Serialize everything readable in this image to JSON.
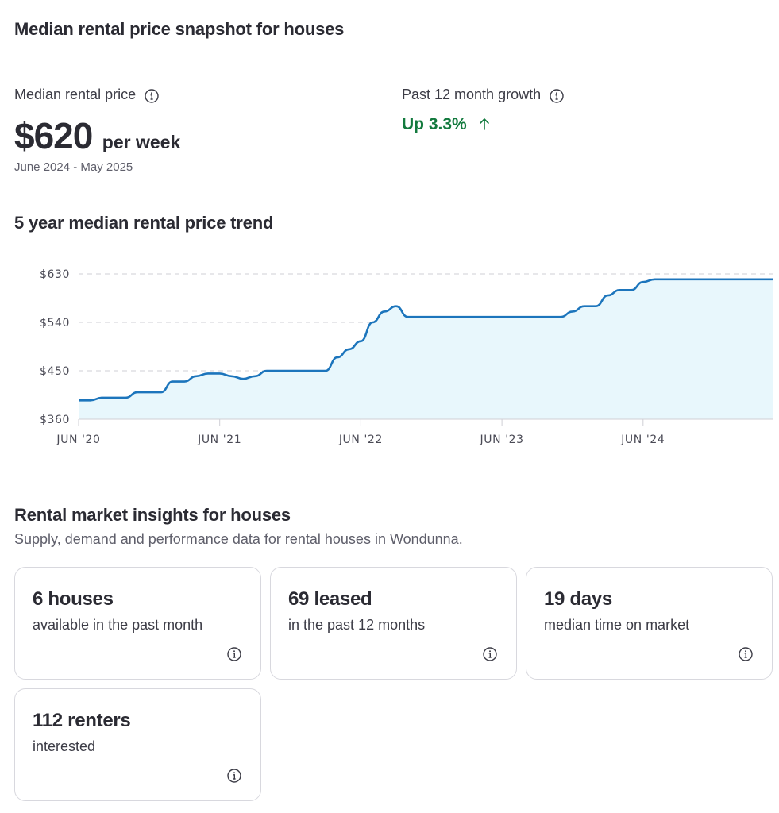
{
  "snapshot": {
    "title": "Median rental price snapshot for houses",
    "median_label": "Median rental price",
    "price": "$620",
    "price_unit": "per week",
    "period": "June 2024 - May 2025",
    "growth_label": "Past 12 month growth",
    "growth_value": "Up 3.3%"
  },
  "trend": {
    "title": "5 year median rental price trend"
  },
  "chart_data": {
    "type": "area",
    "y_ticks": [
      "$630",
      "$540",
      "$450",
      "$360"
    ],
    "ylim": [
      360,
      630
    ],
    "x_ticks": [
      "JUN '20",
      "JUN '21",
      "JUN '22",
      "JUN '23",
      "JUN '24"
    ],
    "grid": true,
    "line_color": "#1c75bc",
    "fill_color": "#e8f7fc",
    "series": [
      {
        "x": [
          "2020-06",
          "2020-07",
          "2020-08",
          "2020-09",
          "2020-10",
          "2020-11",
          "2020-12",
          "2021-01",
          "2021-02",
          "2021-03",
          "2021-04",
          "2021-05",
          "2021-06",
          "2021-07",
          "2021-08",
          "2021-09",
          "2021-10",
          "2021-11",
          "2021-12",
          "2022-01",
          "2022-02",
          "2022-03",
          "2022-04",
          "2022-05",
          "2022-06",
          "2022-07",
          "2022-08",
          "2022-09",
          "2022-10",
          "2022-11",
          "2022-12",
          "2023-01",
          "2023-02",
          "2023-03",
          "2023-04",
          "2023-05",
          "2023-06",
          "2023-07",
          "2023-08",
          "2023-09",
          "2023-10",
          "2023-11",
          "2023-12",
          "2024-01",
          "2024-02",
          "2024-03",
          "2024-04",
          "2024-05",
          "2024-06",
          "2024-07",
          "2024-08",
          "2024-09",
          "2024-10",
          "2024-11",
          "2024-12",
          "2025-01",
          "2025-02",
          "2025-03",
          "2025-04",
          "2025-05"
        ],
        "values": [
          395,
          395,
          400,
          400,
          400,
          410,
          410,
          410,
          430,
          430,
          440,
          445,
          445,
          440,
          435,
          440,
          450,
          450,
          450,
          450,
          450,
          450,
          475,
          490,
          505,
          540,
          560,
          570,
          550,
          550,
          550,
          550,
          550,
          550,
          550,
          550,
          550,
          550,
          550,
          550,
          550,
          550,
          560,
          570,
          570,
          590,
          600,
          600,
          615,
          620,
          620,
          620,
          620,
          620,
          620,
          620,
          620,
          620,
          620,
          620
        ]
      }
    ]
  },
  "insights": {
    "title": "Rental market insights for houses",
    "subtitle": "Supply, demand and performance data for rental houses in Wondunna.",
    "cards": [
      {
        "value": "6 houses",
        "desc": "available in the past month"
      },
      {
        "value": "69 leased",
        "desc": "in the past 12 months"
      },
      {
        "value": "19 days",
        "desc": "median time on market"
      },
      {
        "value": "112 renters",
        "desc": "interested"
      }
    ]
  },
  "icons": {
    "info": "info-circle-icon",
    "arrow": "arrow-up-icon"
  }
}
